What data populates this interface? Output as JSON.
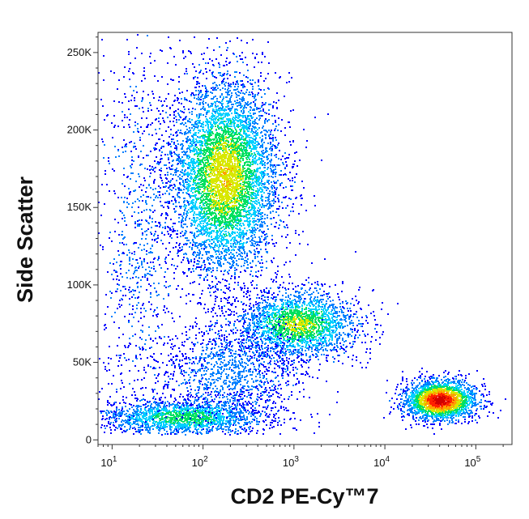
{
  "chart_data": {
    "type": "scatter",
    "subtype": "flow-cytometry-density-plot",
    "xlabel": "CD2 PE-Cy™7",
    "ylabel": "Side Scatter",
    "x_scale": "log",
    "xlim": [
      7,
      250000
    ],
    "ylim": [
      -3000,
      263000
    ],
    "x_ticks": [
      {
        "value": 10,
        "base": "10",
        "exp": "1"
      },
      {
        "value": 100,
        "base": "10",
        "exp": "2"
      },
      {
        "value": 1000,
        "base": "10",
        "exp": "3"
      },
      {
        "value": 10000,
        "base": "10",
        "exp": "4"
      },
      {
        "value": 100000,
        "base": "10",
        "exp": "5"
      }
    ],
    "y_ticks": [
      {
        "value": 0,
        "label": "0"
      },
      {
        "value": 50000,
        "label": "50K"
      },
      {
        "value": 100000,
        "label": "100K"
      },
      {
        "value": 150000,
        "label": "150K"
      },
      {
        "value": 200000,
        "label": "200K"
      },
      {
        "value": 250000,
        "label": "250K"
      }
    ],
    "color_scale": [
      "#0000ff",
      "#0080ff",
      "#00d0ff",
      "#00e060",
      "#d8e800",
      "#ffa000",
      "#ff2000",
      "#d00000"
    ],
    "populations": [
      {
        "x_center": 170,
        "y_center": 170000,
        "x_sd_decades": 0.3,
        "y_sd": 32000,
        "points": 7000,
        "peak": 0.62
      },
      {
        "x_center": 1100,
        "y_center": 75000,
        "x_sd_decades": 0.33,
        "y_sd": 11000,
        "points": 2200,
        "peak": 0.55
      },
      {
        "x_center": 40000,
        "y_center": 26000,
        "x_sd_decades": 0.2,
        "y_sd": 6500,
        "points": 2200,
        "peak": 1.0
      },
      {
        "x_center": 60,
        "y_center": 15000,
        "x_sd_decades": 0.45,
        "y_sd": 6000,
        "points": 1800,
        "peak": 0.45
      },
      {
        "x_center": 200,
        "y_center": 45000,
        "x_sd_decades": 0.4,
        "y_sd": 16000,
        "points": 1200,
        "peak": 0.15
      },
      {
        "x_center": 20,
        "y_center": 130000,
        "x_sd_decades": 0.25,
        "y_sd": 70000,
        "points": 900,
        "peak": 0.1
      }
    ]
  }
}
